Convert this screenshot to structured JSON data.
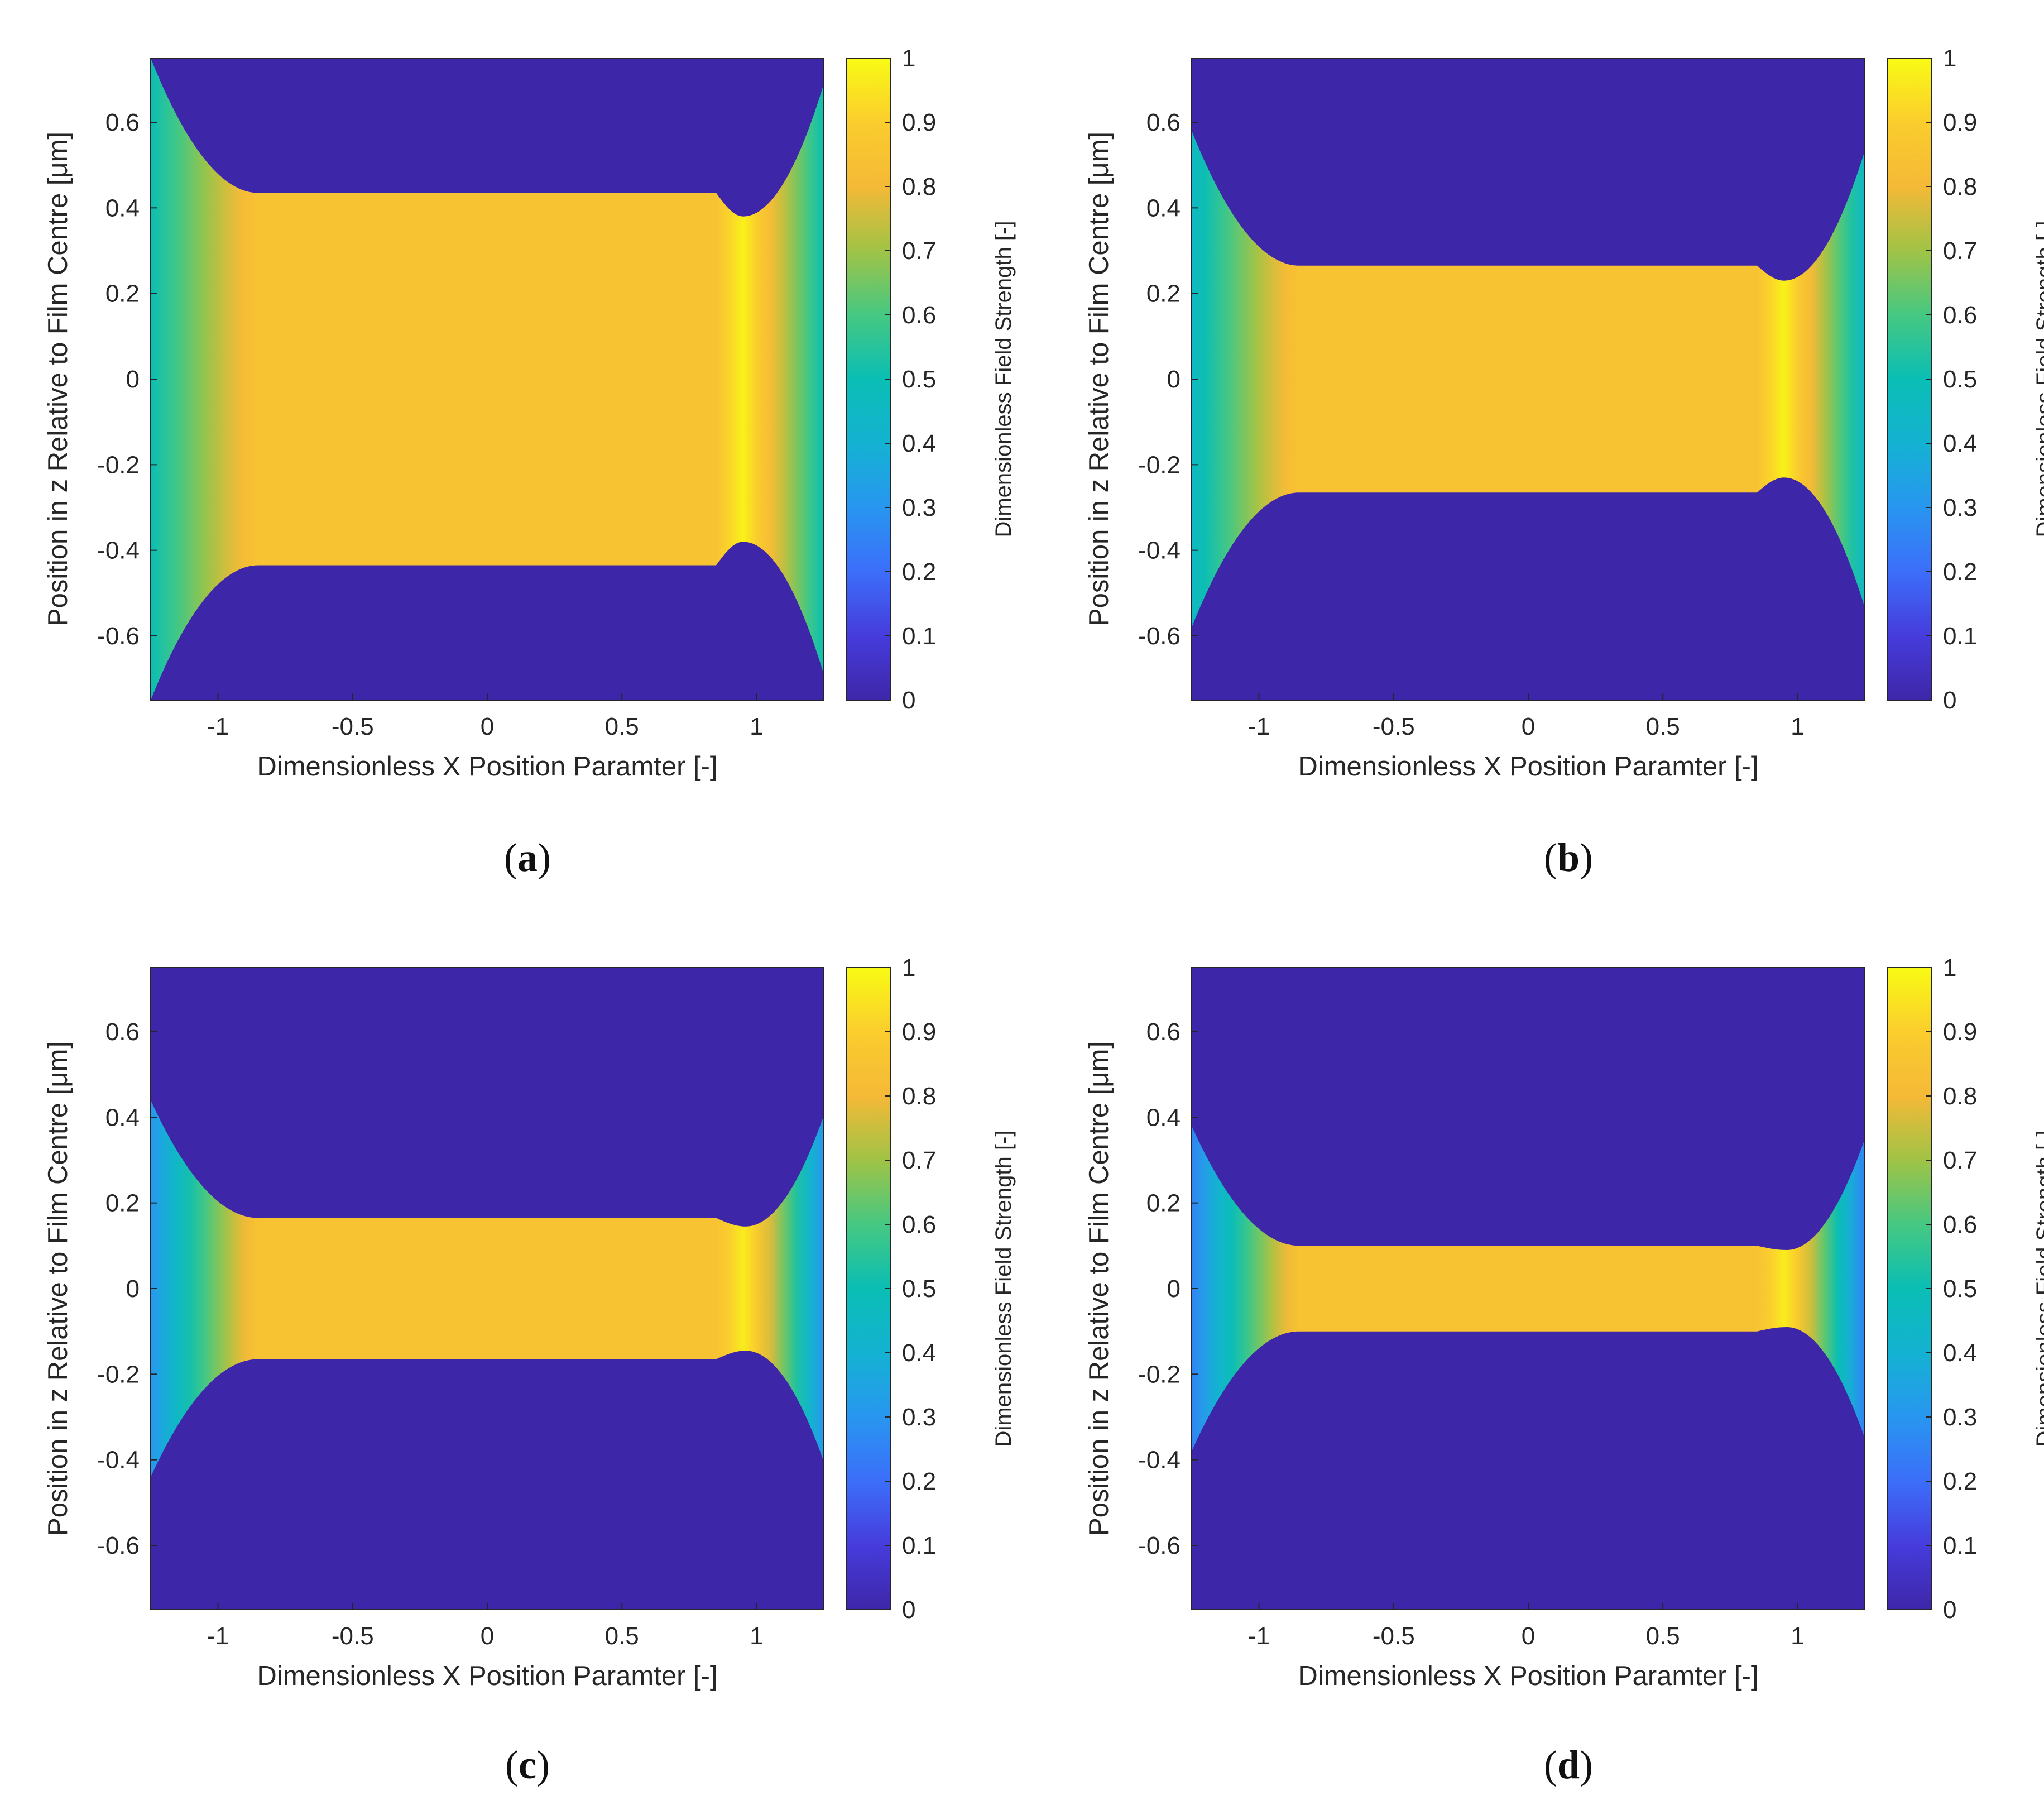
{
  "chart_data": [
    {
      "type": "heatmap",
      "caption": "a",
      "xlabel": "Dimensionless X Position Paramter [-]",
      "ylabel": "Position in z Relative to Film Centre [μm]",
      "colorbar_label": "Dimensionless Field Strength [-]",
      "xlim": [
        -1.25,
        1.25
      ],
      "ylim": [
        -0.75,
        0.75
      ],
      "clim": [
        0,
        1
      ],
      "x_ticks": [
        "-1",
        "-0.5",
        "0",
        "0.5",
        "1"
      ],
      "y_ticks": [
        "0.6",
        "0.4",
        "0.2",
        "0",
        "-0.2",
        "-0.4",
        "-0.6"
      ],
      "colorbar_ticks": [
        "1",
        "0.9",
        "0.8",
        "0.7",
        "0.6",
        "0.5",
        "0.4",
        "0.3",
        "0.2",
        "0.1",
        "0"
      ],
      "film_half_thickness": 0.435,
      "constriction_x": 0.95,
      "constriction_half_thickness": 0.38,
      "edge_half_thickness": 0.75,
      "field_core": 0.85,
      "field_peak": 0.98,
      "field_edge": 0.5
    },
    {
      "type": "heatmap",
      "caption": "b",
      "xlabel": "Dimensionless X Position Paramter [-]",
      "ylabel": "Position in z Relative to Film Centre [μm]",
      "colorbar_label": "Dimensionless Field Strength [-]",
      "xlim": [
        -1.25,
        1.25
      ],
      "ylim": [
        -0.75,
        0.75
      ],
      "clim": [
        0,
        1
      ],
      "x_ticks": [
        "-1",
        "-0.5",
        "0",
        "0.5",
        "1"
      ],
      "y_ticks": [
        "0.6",
        "0.4",
        "0.2",
        "0",
        "-0.2",
        "-0.4",
        "-0.6"
      ],
      "colorbar_ticks": [
        "1",
        "0.9",
        "0.8",
        "0.7",
        "0.6",
        "0.5",
        "0.4",
        "0.3",
        "0.2",
        "0.1",
        "0"
      ],
      "film_half_thickness": 0.265,
      "constriction_x": 0.95,
      "constriction_half_thickness": 0.23,
      "edge_half_thickness": 0.58,
      "field_core": 0.85,
      "field_peak": 0.98,
      "field_edge": 0.45
    },
    {
      "type": "heatmap",
      "caption": "c",
      "xlabel": "Dimensionless X Position Paramter [-]",
      "ylabel": "Position in z Relative to Film Centre [μm]",
      "colorbar_label": "Dimensionless Field Strength [-]",
      "xlim": [
        -1.25,
        1.25
      ],
      "ylim": [
        -0.75,
        0.75
      ],
      "clim": [
        0,
        1
      ],
      "x_ticks": [
        "-1",
        "-0.5",
        "0",
        "0.5",
        "1"
      ],
      "y_ticks": [
        "0.6",
        "0.4",
        "0.2",
        "0",
        "-0.2",
        "-0.4",
        "-0.6"
      ],
      "colorbar_ticks": [
        "1",
        "0.9",
        "0.8",
        "0.7",
        "0.6",
        "0.5",
        "0.4",
        "0.3",
        "0.2",
        "0.1",
        "0"
      ],
      "film_half_thickness": 0.165,
      "constriction_x": 0.96,
      "constriction_half_thickness": 0.145,
      "edge_half_thickness": 0.44,
      "field_core": 0.85,
      "field_peak": 0.98,
      "field_edge": 0.3
    },
    {
      "type": "heatmap",
      "caption": "d",
      "xlabel": "Dimensionless X Position Paramter [-]",
      "ylabel": "Position in z Relative to Film Centre [μm]",
      "colorbar_label": "Dimensionless Field Strength [-]",
      "xlim": [
        -1.25,
        1.25
      ],
      "ylim": [
        -0.75,
        0.75
      ],
      "clim": [
        0,
        1
      ],
      "x_ticks": [
        "-1",
        "-0.5",
        "0",
        "0.5",
        "1"
      ],
      "y_ticks": [
        "0.6",
        "0.4",
        "0.2",
        "0",
        "-0.2",
        "-0.4",
        "-0.6"
      ],
      "colorbar_ticks": [
        "1",
        "0.9",
        "0.8",
        "0.7",
        "0.6",
        "0.5",
        "0.4",
        "0.3",
        "0.2",
        "0.1",
        "0"
      ],
      "film_half_thickness": 0.1,
      "constriction_x": 0.96,
      "constriction_half_thickness": 0.09,
      "edge_half_thickness": 0.38,
      "field_core": 0.85,
      "field_peak": 0.98,
      "field_edge": 0.25
    }
  ]
}
